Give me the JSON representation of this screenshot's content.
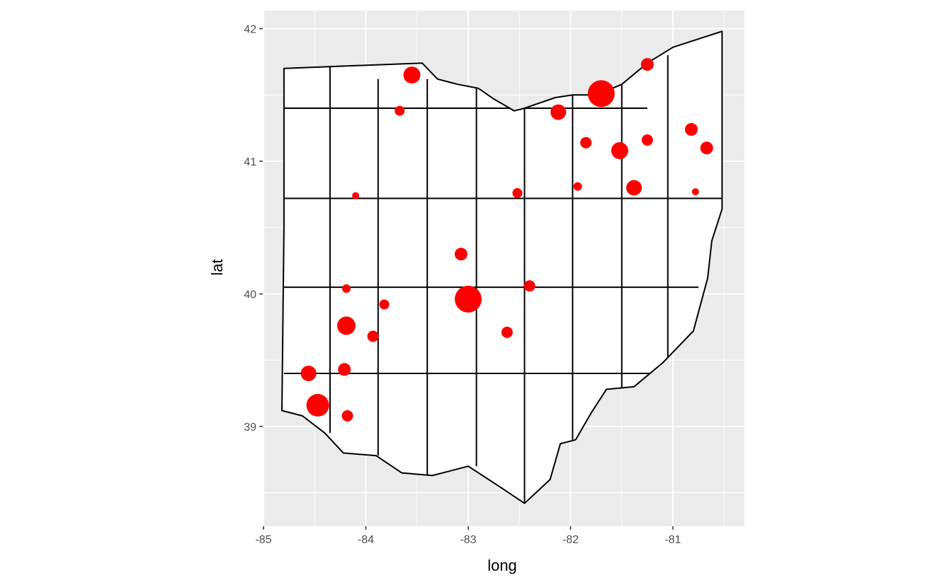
{
  "chart_data": {
    "type": "scatter",
    "title": "",
    "xlabel": "long",
    "ylabel": "lat",
    "xlim": [
      -85.0,
      -80.35
    ],
    "ylim": [
      38.35,
      42.2
    ],
    "x_ticks": [
      "-85",
      "-84",
      "-83",
      "-82",
      "-81"
    ],
    "y_ticks": [
      "39",
      "40",
      "41",
      "42"
    ],
    "x_tick_values": [
      -85,
      -84,
      -83,
      -82,
      -81
    ],
    "y_tick_values": [
      39,
      40,
      41,
      42
    ],
    "grid": true,
    "panel_background": "#ebebeb",
    "grid_color": "#ffffff",
    "map_fill": "#ffffff",
    "map_outline": "#000000",
    "point_color": "#ff0000",
    "outline_lonlat": [
      [
        -84.8,
        41.7
      ],
      [
        -83.45,
        41.74
      ],
      [
        -83.3,
        41.62
      ],
      [
        -83.1,
        41.58
      ],
      [
        -82.9,
        41.55
      ],
      [
        -82.75,
        41.47
      ],
      [
        -82.55,
        41.38
      ],
      [
        -82.45,
        41.4
      ],
      [
        -82.15,
        41.48
      ],
      [
        -81.98,
        41.5
      ],
      [
        -81.75,
        41.5
      ],
      [
        -81.5,
        41.58
      ],
      [
        -81.25,
        41.74
      ],
      [
        -81.0,
        41.86
      ],
      [
        -80.52,
        41.98
      ],
      [
        -80.52,
        40.64
      ],
      [
        -80.62,
        40.4
      ],
      [
        -80.66,
        40.12
      ],
      [
        -80.8,
        39.72
      ],
      [
        -81.1,
        39.48
      ],
      [
        -81.38,
        39.3
      ],
      [
        -81.65,
        39.28
      ],
      [
        -81.8,
        39.1
      ],
      [
        -81.95,
        38.9
      ],
      [
        -82.1,
        38.87
      ],
      [
        -82.2,
        38.6
      ],
      [
        -82.45,
        38.42
      ],
      [
        -82.7,
        38.55
      ],
      [
        -83.0,
        38.7
      ],
      [
        -83.35,
        38.63
      ],
      [
        -83.65,
        38.65
      ],
      [
        -83.9,
        38.78
      ],
      [
        -84.22,
        38.8
      ],
      [
        -84.4,
        38.95
      ],
      [
        -84.62,
        39.08
      ],
      [
        -84.82,
        39.12
      ],
      [
        -84.8,
        40.5
      ]
    ],
    "county_lines": [
      [
        [
          -84.8,
          40.72
        ],
        [
          -80.52,
          40.72
        ]
      ],
      [
        [
          -84.8,
          40.05
        ],
        [
          -80.75,
          40.05
        ]
      ],
      [
        [
          -84.8,
          39.4
        ],
        [
          -81.1,
          39.4
        ]
      ],
      [
        [
          -84.8,
          41.4
        ],
        [
          -81.25,
          41.4
        ]
      ],
      [
        [
          -84.35,
          41.72
        ],
        [
          -84.35,
          38.95
        ]
      ],
      [
        [
          -83.88,
          41.62
        ],
        [
          -83.88,
          38.78
        ]
      ],
      [
        [
          -83.4,
          41.62
        ],
        [
          -83.4,
          38.63
        ]
      ],
      [
        [
          -82.92,
          41.55
        ],
        [
          -82.92,
          38.7
        ]
      ],
      [
        [
          -82.45,
          41.4
        ],
        [
          -82.45,
          38.42
        ]
      ],
      [
        [
          -81.98,
          41.5
        ],
        [
          -81.98,
          38.9
        ]
      ],
      [
        [
          -81.5,
          41.58
        ],
        [
          -81.5,
          39.28
        ]
      ],
      [
        [
          -81.05,
          41.8
        ],
        [
          -81.05,
          39.5
        ]
      ]
    ],
    "points": [
      {
        "x": -83.55,
        "y": 41.65,
        "size": 12
      },
      {
        "x": -83.67,
        "y": 41.38,
        "size": 7
      },
      {
        "x": -81.7,
        "y": 41.51,
        "size": 19
      },
      {
        "x": -81.25,
        "y": 41.73,
        "size": 9
      },
      {
        "x": -82.12,
        "y": 41.37,
        "size": 11
      },
      {
        "x": -81.85,
        "y": 41.14,
        "size": 8
      },
      {
        "x": -81.52,
        "y": 41.08,
        "size": 12
      },
      {
        "x": -81.25,
        "y": 41.16,
        "size": 8
      },
      {
        "x": -80.82,
        "y": 41.24,
        "size": 9
      },
      {
        "x": -80.67,
        "y": 41.1,
        "size": 9
      },
      {
        "x": -84.1,
        "y": 40.74,
        "size": 5
      },
      {
        "x": -82.52,
        "y": 40.76,
        "size": 7
      },
      {
        "x": -81.93,
        "y": 40.81,
        "size": 6
      },
      {
        "x": -81.38,
        "y": 40.8,
        "size": 11
      },
      {
        "x": -80.78,
        "y": 40.77,
        "size": 5
      },
      {
        "x": -83.07,
        "y": 40.3,
        "size": 9
      },
      {
        "x": -84.19,
        "y": 40.04,
        "size": 6
      },
      {
        "x": -83.82,
        "y": 39.92,
        "size": 7
      },
      {
        "x": -83.0,
        "y": 39.96,
        "size": 19
      },
      {
        "x": -82.4,
        "y": 40.06,
        "size": 8
      },
      {
        "x": -84.19,
        "y": 39.76,
        "size": 13
      },
      {
        "x": -83.93,
        "y": 39.68,
        "size": 8
      },
      {
        "x": -82.62,
        "y": 39.71,
        "size": 8
      },
      {
        "x": -84.56,
        "y": 39.4,
        "size": 11
      },
      {
        "x": -84.21,
        "y": 39.43,
        "size": 9
      },
      {
        "x": -84.47,
        "y": 39.16,
        "size": 16
      },
      {
        "x": -84.18,
        "y": 39.08,
        "size": 8
      }
    ]
  }
}
